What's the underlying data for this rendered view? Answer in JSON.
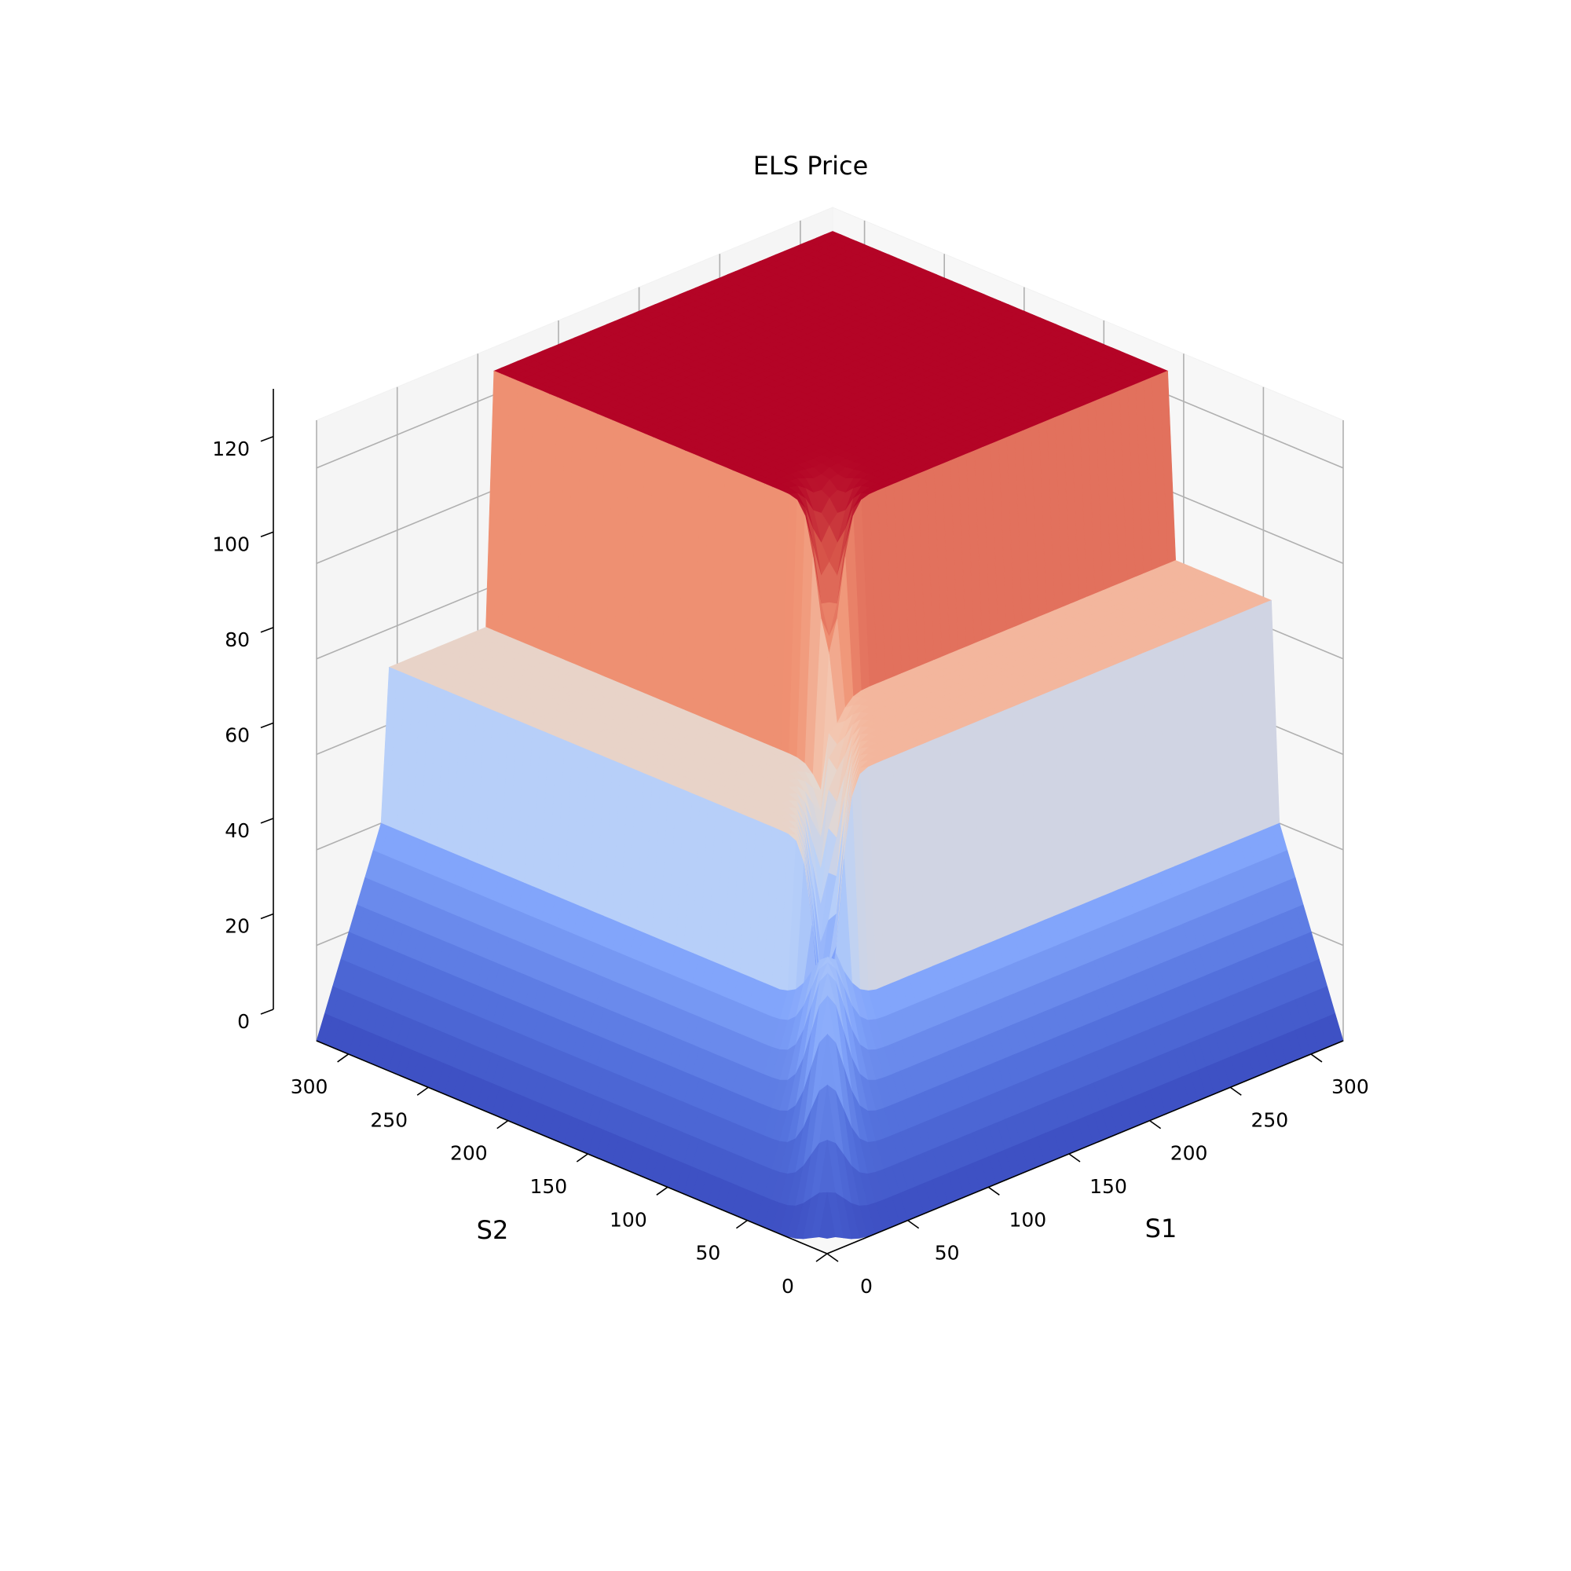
{
  "chart_data": {
    "type": "surface3d",
    "title": "ELS Price",
    "xlabel": "S1",
    "ylabel": "S2",
    "zlabel": "",
    "colormap": "coolwarm",
    "colors": {
      "low": "#3b4cc0",
      "mid": "#dddddd",
      "high": "#b40426"
    },
    "xlim": [
      0,
      320
    ],
    "ylim": [
      0,
      320
    ],
    "zlim": [
      0,
      130
    ],
    "x_ticks": [
      0,
      50,
      100,
      150,
      200,
      250,
      300
    ],
    "y_ticks": [
      0,
      50,
      100,
      150,
      200,
      250,
      300
    ],
    "z_ticks": [
      0,
      20,
      40,
      60,
      80,
      100,
      120
    ],
    "x_tick_labels": [
      "0",
      "50",
      "100",
      "150",
      "200",
      "250",
      "300"
    ],
    "y_tick_labels": [
      "0",
      "50",
      "100",
      "150",
      "200",
      "250",
      "300"
    ],
    "z_tick_labels": [
      "0",
      "20",
      "40",
      "60",
      "80",
      "100",
      "120"
    ],
    "grid": true,
    "surface_summary": {
      "plateau_value": 125,
      "min_value": 0,
      "step_edge_near_S1": 40,
      "step_edge_near_S2": 40,
      "knock_in_barrier": 110,
      "cross_sections": [
        {
          "S2_min": 0,
          "S2_max": 40,
          "value_trend": "rises with S1 from 0 to about 40"
        },
        {
          "S2_min": 40,
          "S2_max": 110,
          "value_trend": "about 84 to 91"
        },
        {
          "S2_min": 110,
          "S2_max": 320,
          "value_trend": "plateau about 125"
        }
      ]
    }
  }
}
